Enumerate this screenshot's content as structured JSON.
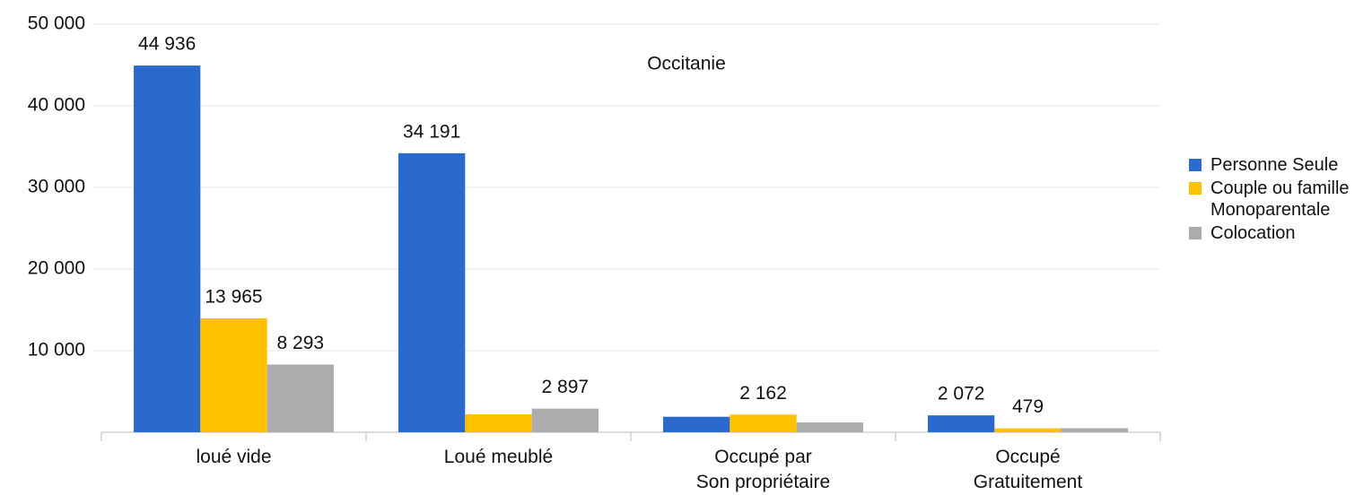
{
  "chart_data": {
    "type": "bar",
    "title": "Occitanie",
    "categories": [
      "loué vide",
      "Loué meublé",
      "Occupé par\nSon propriétaire",
      "Occupé\nGratuitement"
    ],
    "series": [
      {
        "name": "Personne Seule",
        "color": "#2a6acf",
        "values": [
          44936,
          34191,
          1900,
          2072
        ],
        "value_labels": [
          "44 936",
          "34 191",
          null,
          "2 072"
        ]
      },
      {
        "name": "Couple ou famille Monoparentale",
        "color": "#ffc000",
        "values": [
          13965,
          2200,
          2162,
          479
        ],
        "value_labels": [
          "13 965",
          null,
          "2 162",
          "479"
        ]
      },
      {
        "name": "Colocation",
        "color": "#acacac",
        "values": [
          8293,
          2897,
          1200,
          500
        ],
        "value_labels": [
          "8 293",
          "2 897",
          null,
          null
        ]
      }
    ],
    "ylim": [
      0,
      50000
    ],
    "yticks": [
      {
        "value": 10000,
        "label": "10 000"
      },
      {
        "value": 20000,
        "label": "20 000"
      },
      {
        "value": 30000,
        "label": "30 000"
      },
      {
        "value": 40000,
        "label": "40 000"
      },
      {
        "value": 50000,
        "label": "50 000"
      }
    ],
    "grid": true,
    "legend": "right"
  }
}
